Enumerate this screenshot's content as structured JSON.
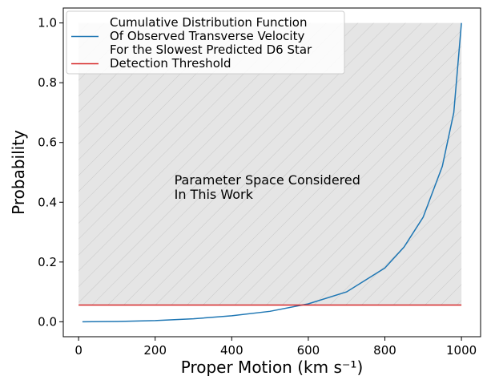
{
  "chart_data": {
    "type": "line",
    "xlabel": "Proper Motion (km s⁻¹)",
    "ylabel": "Probability",
    "xlim": [
      -40,
      1050
    ],
    "ylim": [
      -0.05,
      1.05
    ],
    "xticks": [
      0,
      200,
      400,
      600,
      800,
      1000
    ],
    "yticks": [
      {
        "value": 0,
        "label": "0.0"
      },
      {
        "value": 0.2,
        "label": "0.2"
      },
      {
        "value": 0.4,
        "label": "0.4"
      },
      {
        "value": 0.6,
        "label": "0.6"
      },
      {
        "value": 0.8,
        "label": "0.8"
      },
      {
        "value": 1,
        "label": "1.0"
      }
    ],
    "legend": "upper left",
    "shaded_region": {
      "x": [
        0,
        1000
      ],
      "y": [
        0.056,
        1.0
      ],
      "color": "#e5e5e5"
    },
    "annotation": {
      "text": "Parameter Space Considered\nIn This Work",
      "x": 250,
      "y": 0.46
    },
    "series": [
      {
        "name": "Cumulative Distribution Function\nOf Observed Transverse Velocity\nFor the Slowest Predicted D6 Star",
        "color": "#1f77b4",
        "x": [
          10,
          100,
          200,
          300,
          400,
          500,
          600,
          700,
          800,
          850,
          900,
          950,
          980,
          1000
        ],
        "values": [
          0,
          0.001,
          0.004,
          0.01,
          0.02,
          0.035,
          0.06,
          0.1,
          0.18,
          0.25,
          0.35,
          0.52,
          0.7,
          1.0
        ]
      },
      {
        "name": "Detection Threshold",
        "color": "#d62728",
        "x": [
          0,
          1000
        ],
        "values": [
          0.056,
          0.056
        ]
      }
    ]
  }
}
